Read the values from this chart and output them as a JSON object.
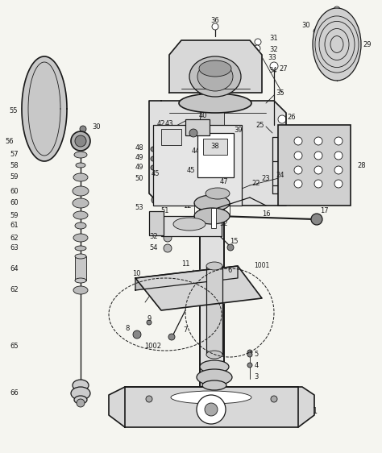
{
  "bg_color": "#f5f5f0",
  "fig_width": 4.74,
  "fig_height": 5.62,
  "dpi": 100,
  "line_color": "#1a1a1a",
  "line_color_light": "#555555"
}
